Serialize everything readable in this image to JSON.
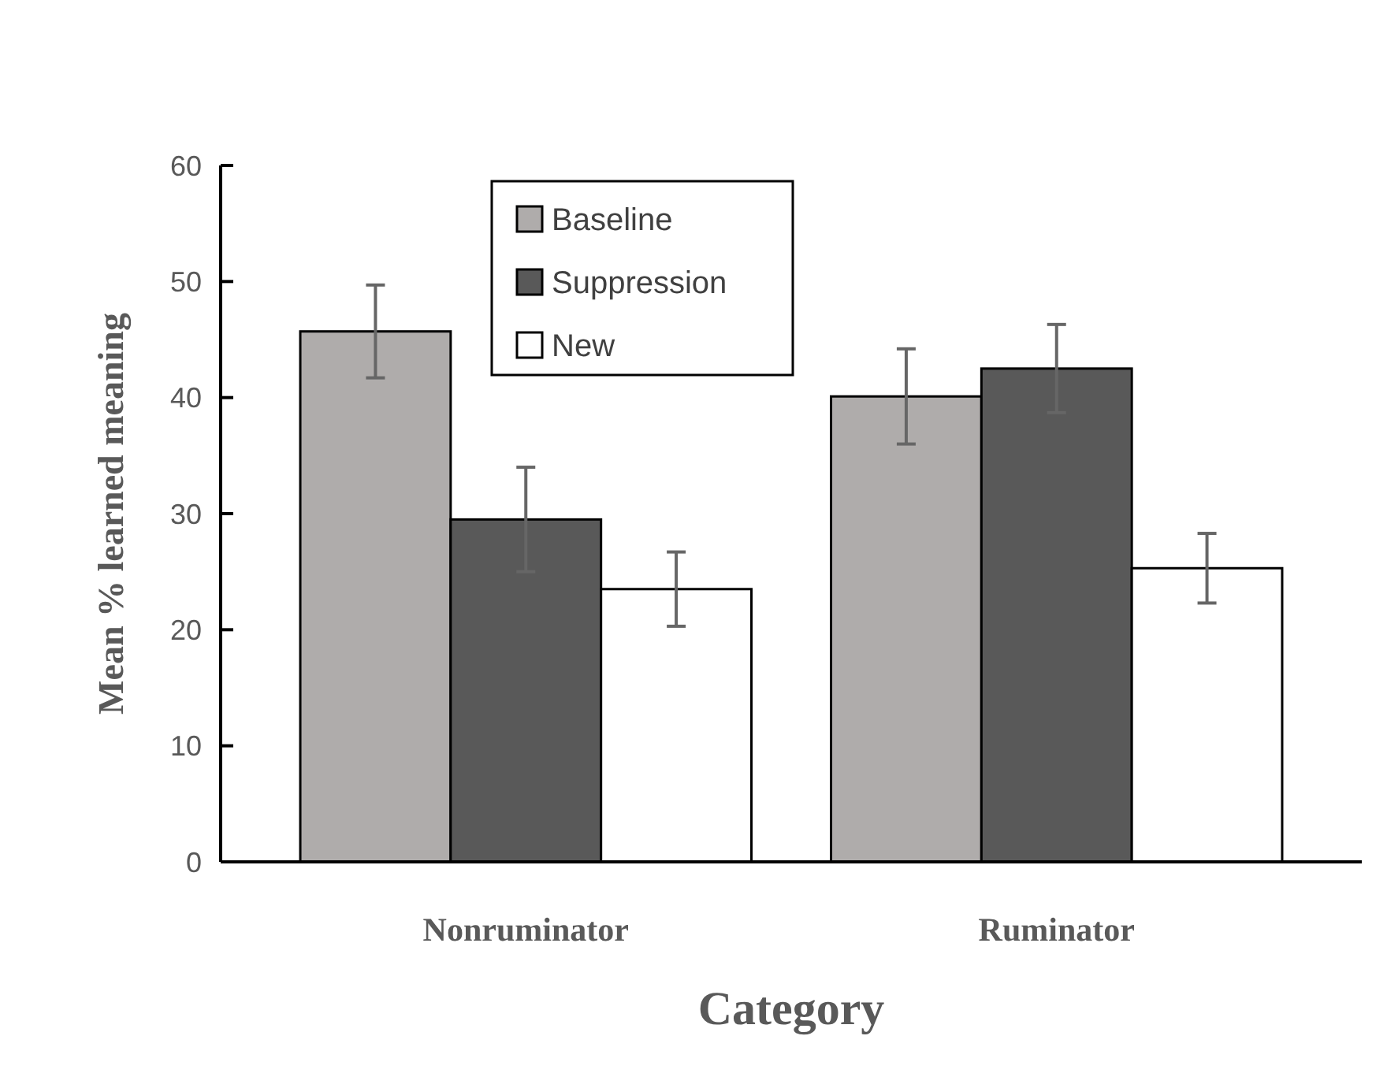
{
  "chart_data": {
    "type": "bar",
    "xlabel": "Category",
    "ylabel": "Mean % learned meaning",
    "categories": [
      "Nonruminator",
      "Ruminator"
    ],
    "series": [
      {
        "name": "Baseline",
        "color": "#afacab",
        "values": [
          45.7,
          40.1
        ],
        "errors": [
          4.0,
          4.1
        ]
      },
      {
        "name": "Suppression",
        "color": "#595959",
        "values": [
          29.5,
          42.5
        ],
        "errors": [
          4.5,
          3.8
        ]
      },
      {
        "name": "New",
        "color": "#ffffff",
        "values": [
          23.5,
          25.3
        ],
        "errors": [
          3.2,
          3.0
        ]
      }
    ],
    "ylim": [
      0,
      60
    ],
    "yticks": [
      0,
      10,
      20,
      30,
      40,
      50,
      60
    ],
    "grid": false,
    "legend": "top"
  }
}
